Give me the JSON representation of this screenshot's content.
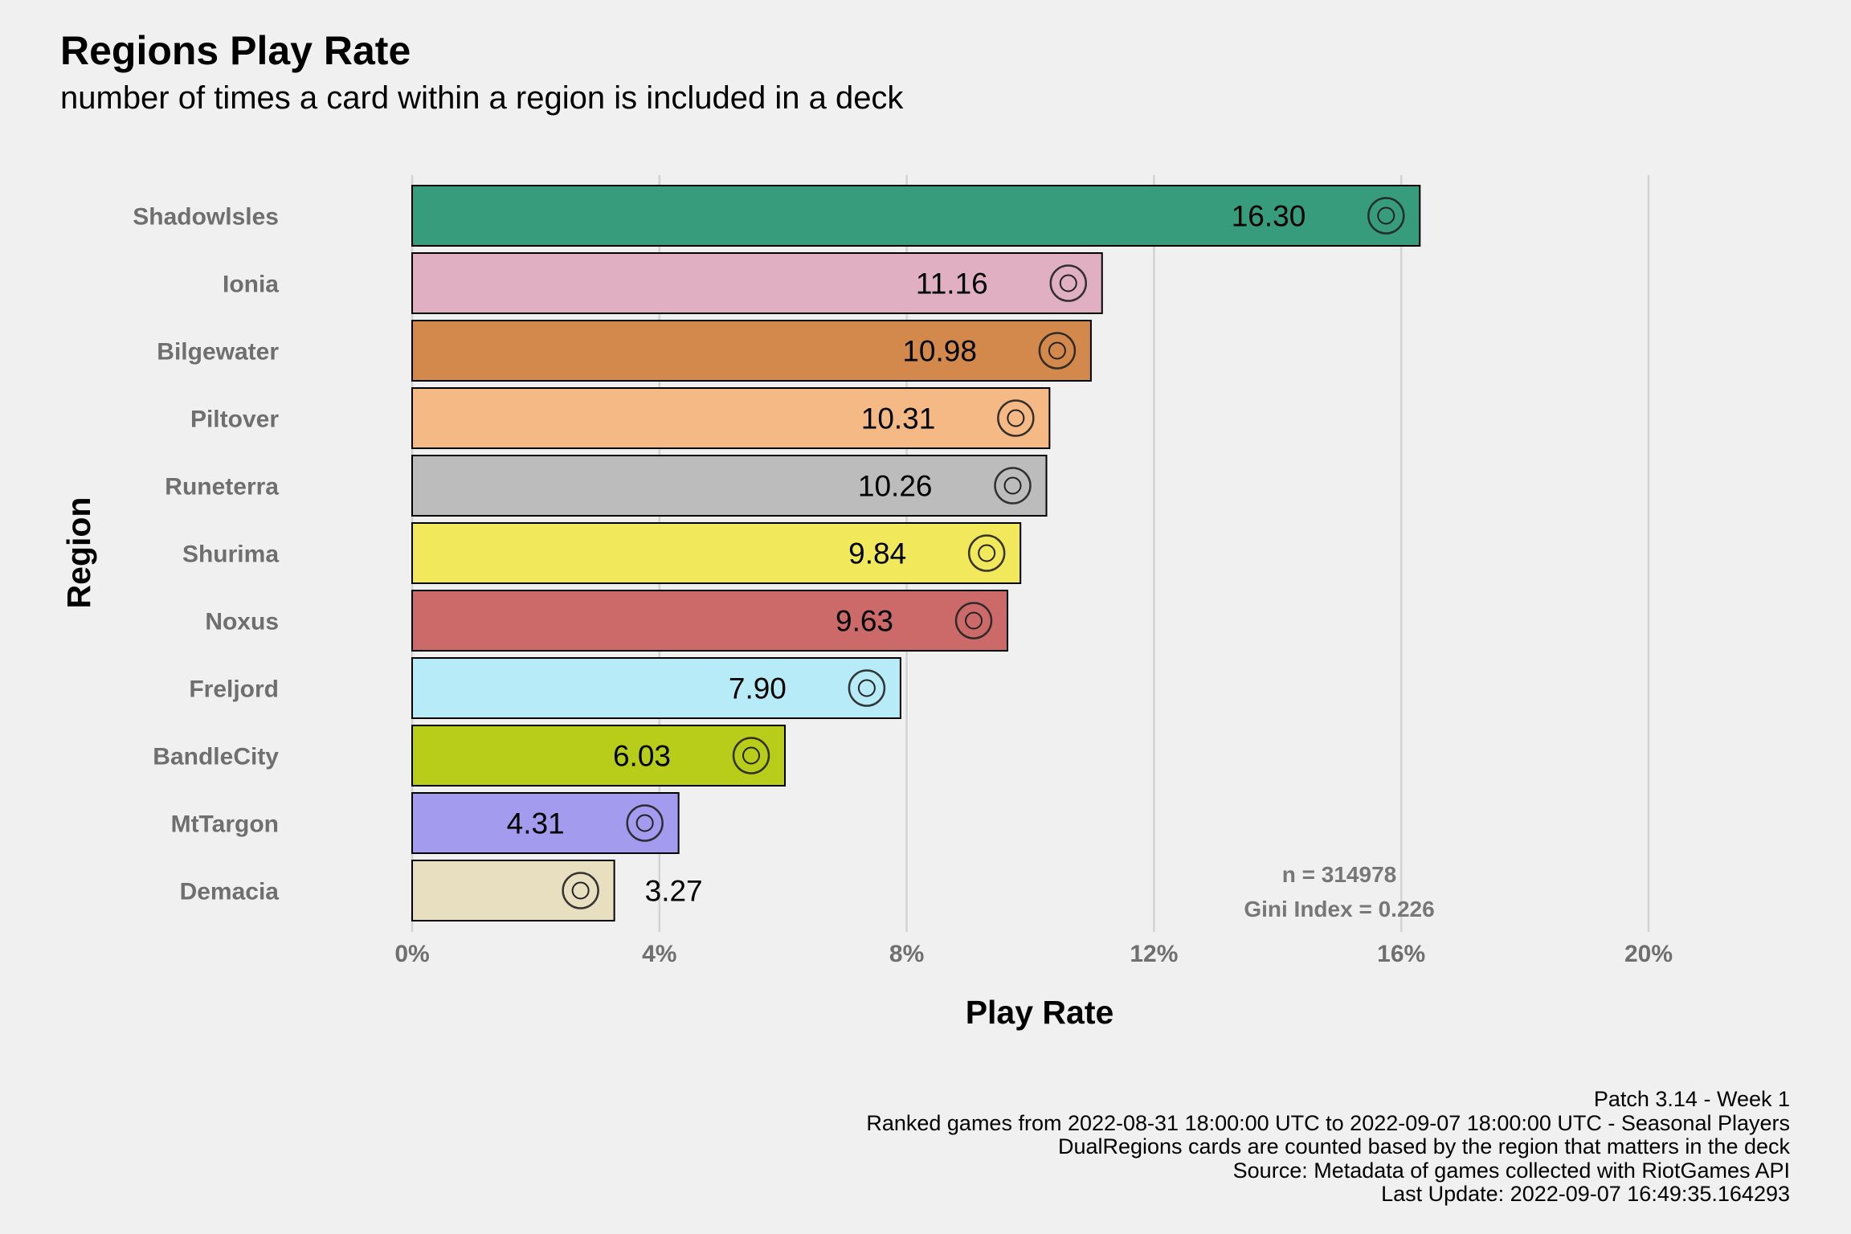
{
  "title": "Regions Play Rate",
  "subtitle": "number of times a card within a region is included in a deck",
  "chart_data": {
    "type": "bar",
    "orientation": "horizontal",
    "xlabel": "Play Rate",
    "ylabel": "Region",
    "xlim": [
      0,
      20
    ],
    "x_ticks": [
      "0%",
      "4%",
      "8%",
      "12%",
      "16%",
      "20%"
    ],
    "x_tick_values": [
      0,
      4,
      8,
      12,
      16,
      20
    ],
    "grid": "vertical major",
    "categories": [
      "Shadowlsles",
      "Ionia",
      "Bilgewater",
      "Piltover",
      "Runeterra",
      "Shurima",
      "Noxus",
      "Freljord",
      "BandleCity",
      "MtTargon",
      "Demacia"
    ],
    "values": [
      16.3,
      11.16,
      10.98,
      10.31,
      10.26,
      9.84,
      9.63,
      7.9,
      6.03,
      4.31,
      3.27
    ],
    "labels": [
      "16.30",
      "11.16",
      "10.98",
      "10.31",
      "10.26",
      "9.84",
      "9.63",
      "7.90",
      "6.03",
      "4.31",
      "3.27"
    ],
    "colors": [
      "#379c7c",
      "#e1afc2",
      "#d3894c",
      "#f5b985",
      "#bcbcbc",
      "#f2e85c",
      "#cc6a6a",
      "#b8ebf8",
      "#b8cc1a",
      "#a39cee",
      "#e8dfc0"
    ],
    "icons": [
      "shadow-isles-icon",
      "ionia-icon",
      "bilgewater-icon",
      "piltover-icon",
      "runeterra-icon",
      "shurima-icon",
      "noxus-icon",
      "freljord-icon",
      "bandle-city-icon",
      "mt-targon-icon",
      "demacia-icon"
    ],
    "annotations": [
      "n = 314978",
      "Gini Index = 0.226"
    ]
  },
  "caption": [
    "Patch 3.14 - Week 1",
    "Ranked games from 2022-08-31 18:00:00 UTC to 2022-09-07 18:00:00 UTC - Seasonal Players",
    "DualRegions cards are counted based by the region that matters in the deck",
    "Source: Metadata of games collected with RiotGames API",
    "Last Update: 2022-09-07 16:49:35.164293"
  ]
}
